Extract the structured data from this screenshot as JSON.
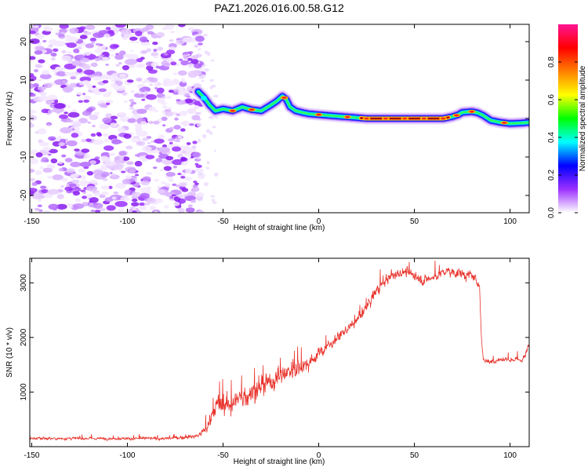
{
  "title": "PAZ1.2026.016.00.58.G12",
  "colorbar": {
    "label": "Normalized spectral amplitude",
    "ticks": [
      "0.0",
      "0.2",
      "0.4",
      "0.6",
      "0.8"
    ],
    "tick_values": [
      0.0,
      0.2,
      0.4,
      0.6,
      0.8
    ],
    "range": [
      0,
      1
    ],
    "colormap": [
      "#ffffff",
      "#9b30ff",
      "#0000ff",
      "#00ffff",
      "#00ff00",
      "#ffff00",
      "#ff8000",
      "#ff0000",
      "#ff1493"
    ]
  },
  "chart_data": [
    {
      "type": "heatmap",
      "name": "spectrogram",
      "xlabel": "Height of straight line (km)",
      "ylabel": "Frequency (Hz)",
      "xlim": [
        -151,
        110
      ],
      "ylim": [
        -24.5,
        24.5
      ],
      "x_ticks": [
        -150,
        -100,
        -50,
        0,
        50,
        100
      ],
      "x_tick_labels": [
        "-150",
        "-100",
        "-50",
        "0",
        "50",
        "100"
      ],
      "y_ticks": [
        -20,
        -10,
        0,
        10,
        20
      ],
      "y_tick_labels": [
        "-20",
        "-10",
        "0",
        "10",
        "20"
      ],
      "noise_region_x": [
        -151,
        -63
      ],
      "signal_ridge": {
        "x": [
          -63,
          -60,
          -57,
          -54,
          -50,
          -45,
          -40,
          -35,
          -30,
          -25,
          -22,
          -19,
          -17,
          -15,
          -12,
          -8,
          -5,
          0,
          5,
          10,
          15,
          20,
          25,
          30,
          40,
          50,
          60,
          65,
          70,
          73,
          75,
          80,
          83,
          86,
          90,
          95,
          100,
          105,
          110
        ],
        "y": [
          7.0,
          5.5,
          3.5,
          2.0,
          2.5,
          2.0,
          3.0,
          2.3,
          2.0,
          3.5,
          4.5,
          5.8,
          5.0,
          3.0,
          2.0,
          1.5,
          1.2,
          1.0,
          0.8,
          0.6,
          0.4,
          0.2,
          0.0,
          0.0,
          0.0,
          0.0,
          0.0,
          0.0,
          0.5,
          1.0,
          1.6,
          1.8,
          1.5,
          0.8,
          -0.5,
          -1.0,
          -1.3,
          -1.2,
          -1.0
        ],
        "peak_amplitude_x": [
          -45,
          -35,
          -18,
          0,
          15,
          25,
          35,
          45,
          55,
          65,
          72,
          80,
          97
        ]
      }
    },
    {
      "type": "line",
      "name": "snr",
      "xlabel": "Height of straight line (km)",
      "ylabel": "SNR (10 * v/v)",
      "xlim": [
        -151,
        110
      ],
      "ylim": [
        0,
        3450
      ],
      "x_ticks": [
        -150,
        -100,
        -50,
        0,
        50,
        100
      ],
      "x_tick_labels": [
        "-150",
        "-100",
        "-50",
        "0",
        "50",
        "100"
      ],
      "y_ticks": [
        1000,
        2000,
        3000
      ],
      "y_tick_labels": [
        "1000",
        "2000",
        "3000"
      ],
      "color": "#e8312a",
      "envelope": {
        "x": [
          -151,
          -140,
          -120,
          -100,
          -80,
          -70,
          -63,
          -58,
          -55,
          -50,
          -45,
          -40,
          -35,
          -30,
          -25,
          -20,
          -15,
          -10,
          -5,
          0,
          5,
          10,
          15,
          20,
          25,
          30,
          35,
          40,
          45,
          50,
          55,
          60,
          65,
          70,
          75,
          80,
          84,
          85,
          86,
          90,
          95,
          100,
          105,
          108,
          110
        ],
        "y": [
          150,
          150,
          150,
          150,
          150,
          170,
          200,
          350,
          700,
          750,
          800,
          900,
          1000,
          1100,
          1200,
          1300,
          1400,
          1450,
          1550,
          1700,
          1850,
          2000,
          2150,
          2300,
          2550,
          2850,
          3050,
          3150,
          3200,
          3150,
          3050,
          3100,
          3200,
          3200,
          3150,
          3150,
          2950,
          2000,
          1600,
          1550,
          1600,
          1600,
          1580,
          1650,
          1900
        ],
        "noise_amplitude": [
          60,
          60,
          60,
          60,
          70,
          80,
          100,
          250,
          450,
          450,
          500,
          500,
          550,
          550,
          500,
          480,
          450,
          380,
          300,
          250,
          220,
          200,
          200,
          200,
          220,
          250,
          250,
          230,
          220,
          250,
          250,
          230,
          220,
          220,
          220,
          200,
          200,
          150,
          120,
          120,
          120,
          120,
          130,
          180,
          250
        ]
      }
    }
  ]
}
